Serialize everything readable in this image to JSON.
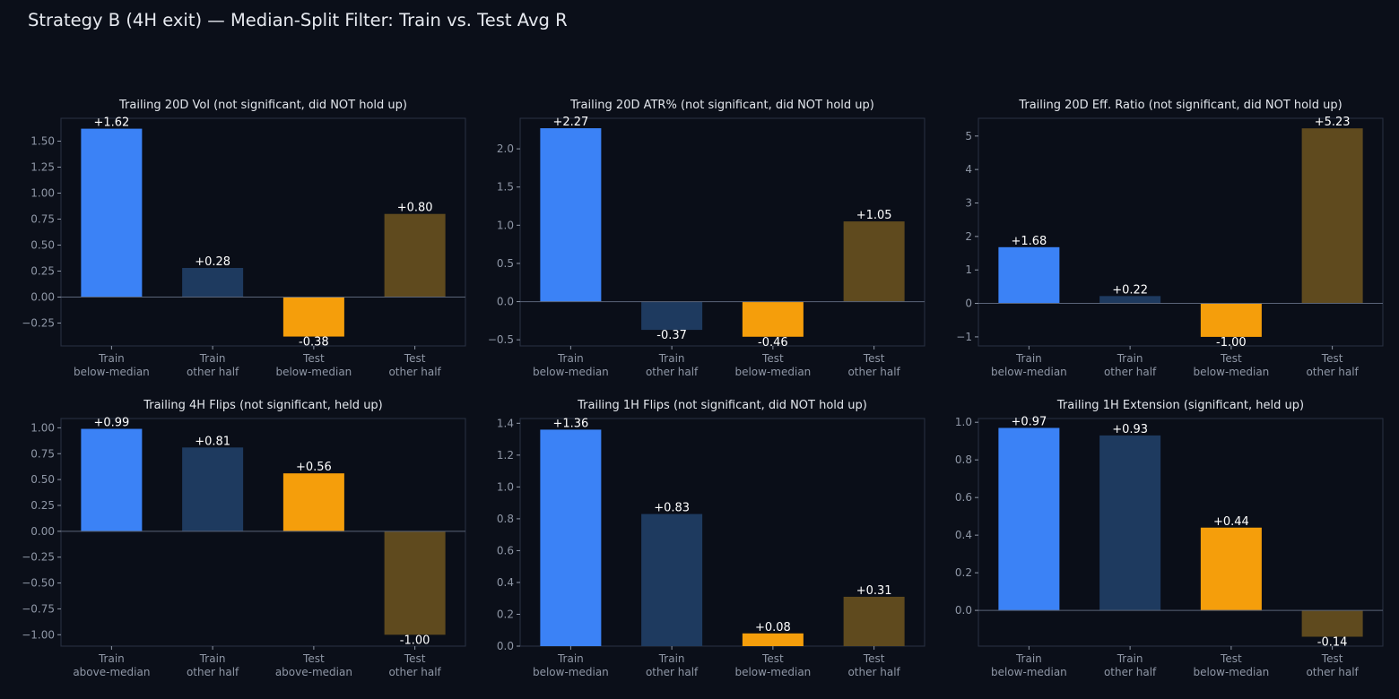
{
  "suptitle": "Strategy B (4H exit) — Median-Split Filter: Train vs. Test Avg R",
  "colors": {
    "background": "#0b0f19",
    "axes_face": "#0a0e18",
    "spine": "#2a3244",
    "zero_line": "#5a6478",
    "bar_colors": [
      "#3b82f6",
      "#1e3a5f",
      "#f59e0b",
      "#5f4a1e"
    ]
  },
  "chart_data": [
    {
      "type": "bar",
      "title": "Trailing 20D Vol (not significant, did NOT hold up)",
      "categories": [
        [
          "Train",
          "below-median"
        ],
        [
          "Train",
          "other half"
        ],
        [
          "Test",
          "below-median"
        ],
        [
          "Test",
          "other half"
        ]
      ],
      "values": [
        1.62,
        0.28,
        -0.38,
        0.8
      ],
      "value_labels": [
        "+1.62",
        "+0.28",
        "-0.38",
        "+0.80"
      ],
      "ylim": [
        -0.47,
        1.72
      ],
      "yticks": [
        -0.25,
        0.0,
        0.25,
        0.5,
        0.75,
        1.0,
        1.25,
        1.5
      ],
      "ytick_labels": [
        "−0.25",
        "0.00",
        "0.25",
        "0.50",
        "0.75",
        "1.00",
        "1.25",
        "1.50"
      ]
    },
    {
      "type": "bar",
      "title": "Trailing 20D ATR% (not significant, did NOT hold up)",
      "categories": [
        [
          "Train",
          "below-median"
        ],
        [
          "Train",
          "other half"
        ],
        [
          "Test",
          "below-median"
        ],
        [
          "Test",
          "other half"
        ]
      ],
      "values": [
        2.27,
        -0.37,
        -0.46,
        1.05
      ],
      "value_labels": [
        "+2.27",
        "-0.37",
        "-0.46",
        "+1.05"
      ],
      "ylim": [
        -0.58,
        2.4
      ],
      "yticks": [
        -0.5,
        0.0,
        0.5,
        1.0,
        1.5,
        2.0
      ],
      "ytick_labels": [
        "−0.5",
        "0.0",
        "0.5",
        "1.0",
        "1.5",
        "2.0"
      ]
    },
    {
      "type": "bar",
      "title": "Trailing 20D Eff. Ratio (not significant, did NOT hold up)",
      "categories": [
        [
          "Train",
          "below-median"
        ],
        [
          "Train",
          "other half"
        ],
        [
          "Test",
          "below-median"
        ],
        [
          "Test",
          "other half"
        ]
      ],
      "values": [
        1.68,
        0.22,
        -1.0,
        5.23
      ],
      "value_labels": [
        "+1.68",
        "+0.22",
        "-1.00",
        "+5.23"
      ],
      "ylim": [
        -1.27,
        5.53
      ],
      "yticks": [
        -1,
        0,
        1,
        2,
        3,
        4,
        5
      ],
      "ytick_labels": [
        "−1",
        "0",
        "1",
        "2",
        "3",
        "4",
        "5"
      ]
    },
    {
      "type": "bar",
      "title": "Trailing 4H Flips (not significant, held up)",
      "categories": [
        [
          "Train",
          "above-median"
        ],
        [
          "Train",
          "other half"
        ],
        [
          "Test",
          "above-median"
        ],
        [
          "Test",
          "other half"
        ]
      ],
      "values": [
        0.99,
        0.81,
        0.56,
        -1.0
      ],
      "value_labels": [
        "+0.99",
        "+0.81",
        "+0.56",
        "-1.00"
      ],
      "ylim": [
        -1.11,
        1.09
      ],
      "yticks": [
        -1.0,
        -0.75,
        -0.5,
        -0.25,
        0.0,
        0.25,
        0.5,
        0.75,
        1.0
      ],
      "ytick_labels": [
        "−1.00",
        "−0.75",
        "−0.50",
        "−0.25",
        "0.00",
        "0.25",
        "0.50",
        "0.75",
        "1.00"
      ]
    },
    {
      "type": "bar",
      "title": "Trailing 1H Flips (not significant, did NOT hold up)",
      "categories": [
        [
          "Train",
          "below-median"
        ],
        [
          "Train",
          "other half"
        ],
        [
          "Test",
          "below-median"
        ],
        [
          "Test",
          "other half"
        ]
      ],
      "values": [
        1.36,
        0.83,
        0.08,
        0.31
      ],
      "value_labels": [
        "+1.36",
        "+0.83",
        "+0.08",
        "+0.31"
      ],
      "ylim": [
        0.0,
        1.43
      ],
      "yticks": [
        0.0,
        0.2,
        0.4,
        0.6,
        0.8,
        1.0,
        1.2,
        1.4
      ],
      "ytick_labels": [
        "0.0",
        "0.2",
        "0.4",
        "0.6",
        "0.8",
        "1.0",
        "1.2",
        "1.4"
      ]
    },
    {
      "type": "bar",
      "title": "Trailing 1H Extension (significant, held up)",
      "categories": [
        [
          "Train",
          "below-median"
        ],
        [
          "Train",
          "other half"
        ],
        [
          "Test",
          "below-median"
        ],
        [
          "Test",
          "other half"
        ]
      ],
      "values": [
        0.97,
        0.93,
        0.44,
        -0.14
      ],
      "value_labels": [
        "+0.97",
        "+0.93",
        "+0.44",
        "-0.14"
      ],
      "ylim": [
        -0.19,
        1.02
      ],
      "yticks": [
        0.0,
        0.2,
        0.4,
        0.6,
        0.8,
        1.0
      ],
      "ytick_labels": [
        "0.0",
        "0.2",
        "0.4",
        "0.6",
        "0.8",
        "1.0"
      ]
    }
  ]
}
